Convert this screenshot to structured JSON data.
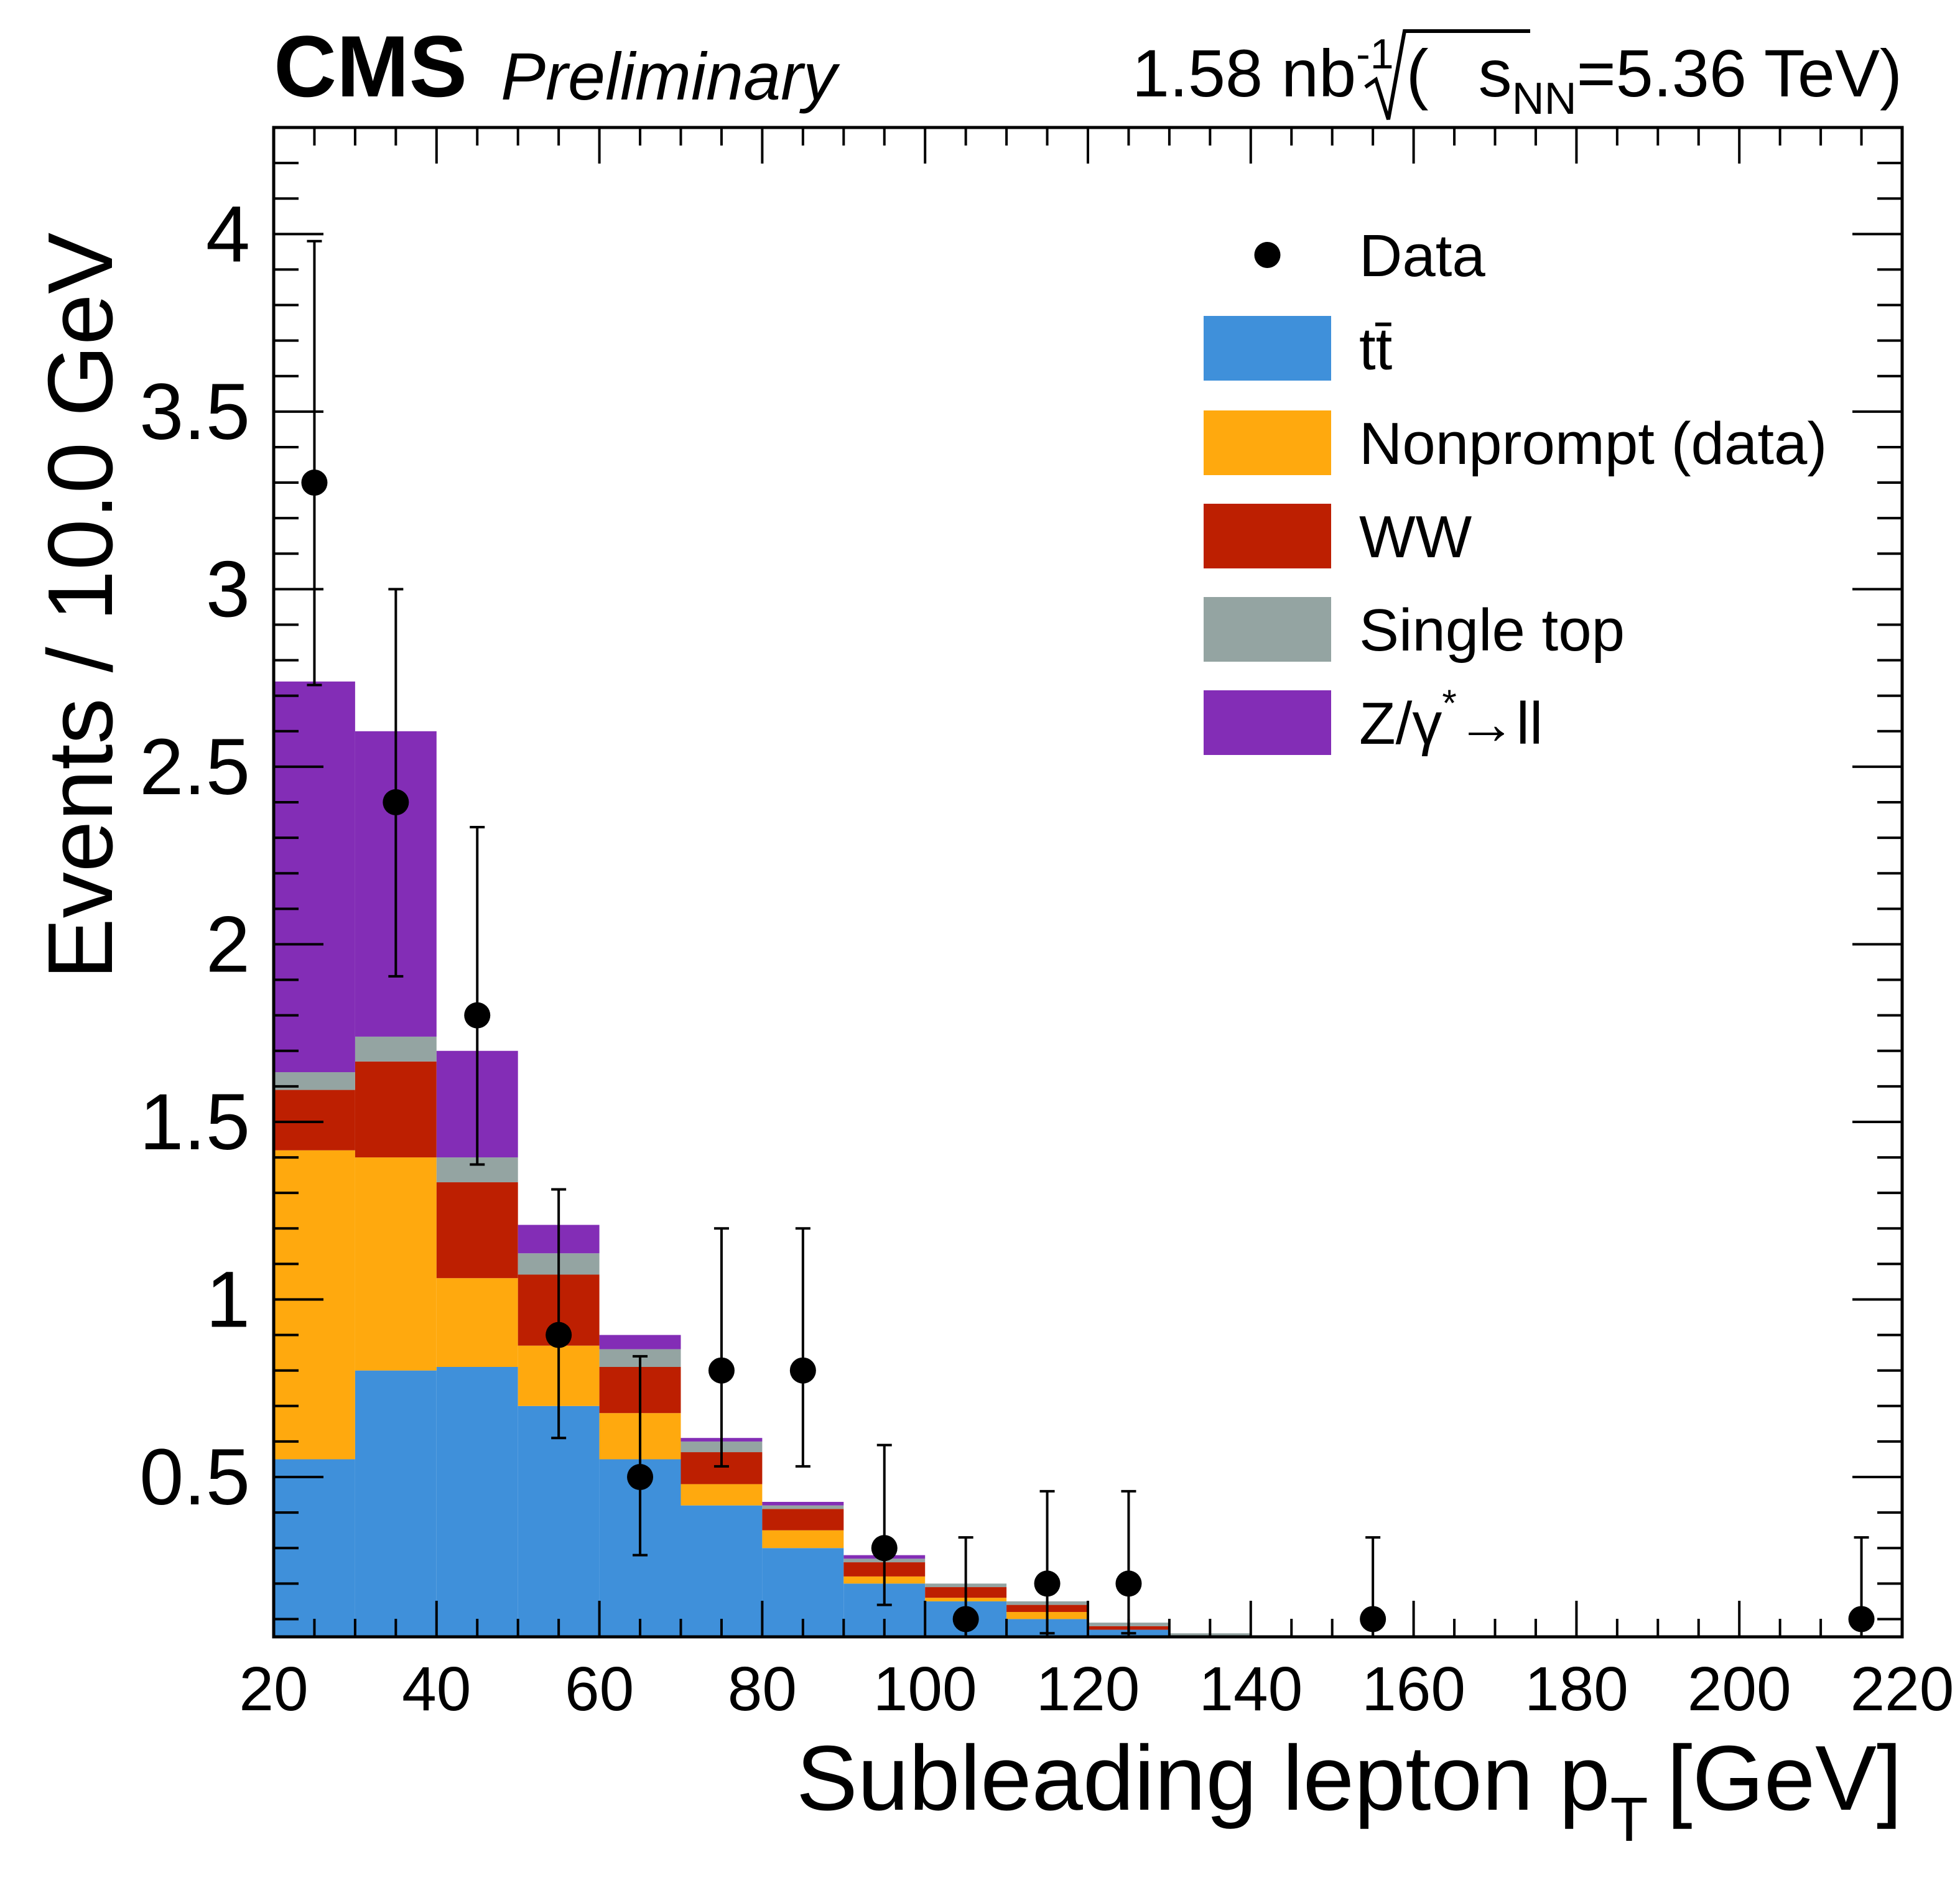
{
  "header": {
    "experiment": "CMS",
    "status": "Preliminary",
    "lumi_value": "1.58 nb",
    "lumi_exponent": "-1",
    "energy_open": "(",
    "energy_s": "s",
    "energy_sub": "NN",
    "energy_value": "=5.36 TeV)"
  },
  "colors": {
    "ttbar": "#3f90da",
    "nonprompt": "#ffa90e",
    "ww": "#bd1f01",
    "single_top": "#94a4a2",
    "dy": "#832db6",
    "data": "#000000"
  },
  "chart_data": {
    "type": "bar",
    "stacked": true,
    "xlabel": "Subleading lepton p",
    "xlabel_sub": "T",
    "xlabel_unit": "[GeV]",
    "ylabel": "Events / 10.0 GeV",
    "xlim": [
      20,
      220
    ],
    "ylim": [
      0.05,
      4.3
    ],
    "x_ticks": [
      20,
      40,
      60,
      80,
      100,
      120,
      140,
      160,
      180,
      200,
      220
    ],
    "y_ticks": [
      0.5,
      1,
      1.5,
      2,
      2.5,
      3,
      3.5,
      4
    ],
    "y_tick_labels": [
      "0.5",
      "1",
      "1.5",
      "2",
      "2.5",
      "3",
      "3.5",
      "4"
    ],
    "bin_edges": [
      20,
      30,
      40,
      50,
      60,
      70,
      80,
      90,
      100,
      110,
      120,
      130,
      140,
      150,
      160,
      170,
      180,
      190,
      200,
      210,
      220
    ],
    "series": [
      {
        "key": "ttbar",
        "name": "tt̄",
        "values": [
          0.55,
          0.8,
          0.81,
          0.7,
          0.55,
          0.42,
          0.3,
          0.2,
          0.15,
          0.1,
          0.07,
          0.04,
          0.02,
          0,
          0,
          0,
          0,
          0,
          0,
          0
        ]
      },
      {
        "key": "nonprompt",
        "name": "Nonprompt (data)",
        "values": [
          0.87,
          0.6,
          0.25,
          0.17,
          0.13,
          0.06,
          0.05,
          0.02,
          0.01,
          0.02,
          0,
          0,
          0,
          0,
          0,
          0,
          0,
          0,
          0,
          0
        ]
      },
      {
        "key": "ww",
        "name": "WW",
        "values": [
          0.17,
          0.27,
          0.27,
          0.2,
          0.13,
          0.09,
          0.06,
          0.04,
          0.03,
          0.02,
          0.01,
          0.01,
          0,
          0,
          0,
          0,
          0,
          0,
          0,
          0
        ]
      },
      {
        "key": "single_top",
        "name": "Single top",
        "values": [
          0.05,
          0.07,
          0.07,
          0.06,
          0.05,
          0.03,
          0.01,
          0.01,
          0.01,
          0.01,
          0.01,
          0.01,
          0,
          0,
          0,
          0,
          0,
          0,
          0,
          0
        ]
      },
      {
        "key": "dy",
        "name": "Z/γ*→ll",
        "values": [
          1.1,
          0.86,
          0.3,
          0.08,
          0.04,
          0.01,
          0.01,
          0.01,
          0,
          0,
          0,
          0,
          0,
          0,
          0,
          0,
          0,
          0,
          0,
          0
        ]
      }
    ],
    "data_points": {
      "name": "Data",
      "x": [
        25,
        35,
        45,
        55,
        65,
        75,
        85,
        95,
        105,
        115,
        125,
        155,
        215
      ],
      "y": [
        3.3,
        2.4,
        1.8,
        0.9,
        0.5,
        0.8,
        0.8,
        0.3,
        0.1,
        0.2,
        0.2,
        0.1,
        0.1
      ],
      "y_low": [
        2.73,
        1.91,
        1.38,
        0.61,
        0.28,
        0.53,
        0.53,
        0.14,
        0.05,
        0.06,
        0.06,
        0.05,
        0.05
      ],
      "y_high": [
        3.98,
        3.0,
        2.33,
        1.31,
        0.84,
        1.2,
        1.2,
        0.59,
        0.33,
        0.46,
        0.46,
        0.33,
        0.33
      ]
    },
    "legend_position": "top-right",
    "legend": [
      {
        "key": "data",
        "label": "Data",
        "type": "marker"
      },
      {
        "key": "ttbar",
        "label": "t",
        "label_bar": "t̄",
        "type": "box"
      },
      {
        "key": "nonprompt",
        "label": "Nonprompt (data)",
        "type": "box"
      },
      {
        "key": "ww",
        "label": "WW",
        "type": "box"
      },
      {
        "key": "single_top",
        "label": "Single top",
        "type": "box"
      },
      {
        "key": "dy",
        "label": "Z/γ",
        "label_sup": "*",
        "label_tail": "→ll",
        "type": "box"
      }
    ]
  }
}
